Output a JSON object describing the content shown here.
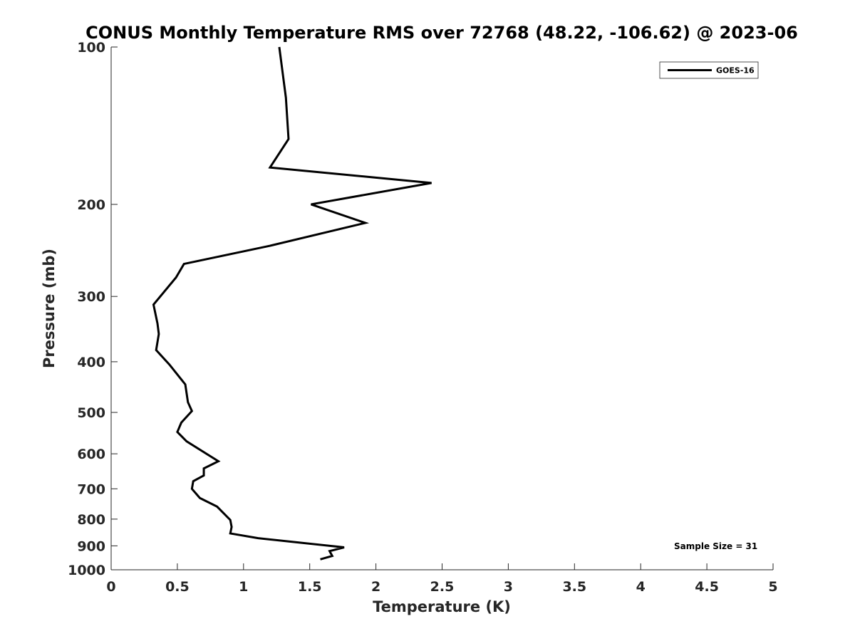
{
  "chart_data": {
    "type": "line",
    "title": "CONUS Monthly Temperature RMS over 72768 (48.22, -106.62) @ 2023-06",
    "xlabel": "Temperature (K)",
    "ylabel": "Pressure (mb)",
    "xlim": [
      0,
      5
    ],
    "ylim": [
      100,
      1000
    ],
    "y_scale": "log",
    "y_reversed": true,
    "x_ticks": [
      0,
      0.5,
      1,
      1.5,
      2,
      2.5,
      3,
      3.5,
      4,
      4.5,
      5
    ],
    "x_tick_labels": [
      "0",
      "0.5",
      "1",
      "1.5",
      "2",
      "2.5",
      "3",
      "3.5",
      "4",
      "4.5",
      "5"
    ],
    "y_ticks": [
      100,
      200,
      300,
      400,
      500,
      600,
      700,
      800,
      900,
      1000
    ],
    "y_tick_labels": [
      "100",
      "200",
      "300",
      "400",
      "500",
      "600",
      "700",
      "800",
      "900",
      "1000"
    ],
    "grid": false,
    "legend_position": "top-right",
    "series": [
      {
        "name": "GOES-16",
        "color": "#000000",
        "points": [
          [
            1.27,
            100
          ],
          [
            1.32,
            125
          ],
          [
            1.34,
            150
          ],
          [
            1.2,
            170
          ],
          [
            2.42,
            182
          ],
          [
            1.51,
            200
          ],
          [
            1.92,
            217
          ],
          [
            1.2,
            240
          ],
          [
            0.55,
            260
          ],
          [
            0.49,
            276
          ],
          [
            0.32,
            311
          ],
          [
            0.35,
            338
          ],
          [
            0.36,
            354
          ],
          [
            0.34,
            380
          ],
          [
            0.44,
            405
          ],
          [
            0.56,
            442
          ],
          [
            0.58,
            478
          ],
          [
            0.61,
            497
          ],
          [
            0.53,
            523
          ],
          [
            0.5,
            545
          ],
          [
            0.57,
            568
          ],
          [
            0.81,
            620
          ],
          [
            0.7,
            640
          ],
          [
            0.7,
            660
          ],
          [
            0.62,
            677
          ],
          [
            0.61,
            700
          ],
          [
            0.67,
            729
          ],
          [
            0.8,
            757
          ],
          [
            0.9,
            803
          ],
          [
            0.91,
            828
          ],
          [
            0.9,
            852
          ],
          [
            1.11,
            870
          ],
          [
            1.76,
            906
          ],
          [
            1.65,
            921
          ],
          [
            1.67,
            941
          ],
          [
            1.58,
            955
          ]
        ]
      }
    ],
    "annotations": [
      "Sample Size = 31"
    ]
  }
}
